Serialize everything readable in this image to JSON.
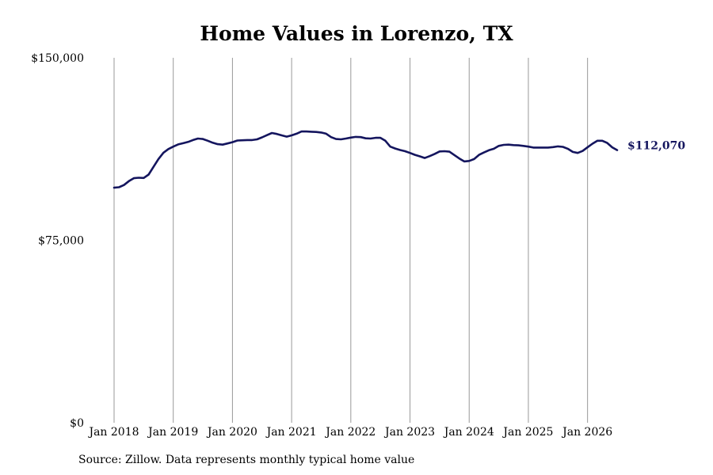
{
  "source_note": "Source: Zillow. Data represents monthly typical home value",
  "chart_data": {
    "type": "line",
    "title": "Home Values in Lorenzo, TX",
    "xlabel": "",
    "ylabel": "",
    "ylim": [
      0,
      150000
    ],
    "y_ticks": [
      {
        "value": 0,
        "label": "$0"
      },
      {
        "value": 75000,
        "label": "$75,000"
      },
      {
        "value": 150000,
        "label": "$150,000"
      }
    ],
    "x_ticks": [
      {
        "value": "2018-01",
        "label": "Jan 2018"
      },
      {
        "value": "2019-01",
        "label": "Jan 2019"
      },
      {
        "value": "2020-01",
        "label": "Jan 2020"
      },
      {
        "value": "2021-01",
        "label": "Jan 2021"
      },
      {
        "value": "2022-01",
        "label": "Jan 2022"
      },
      {
        "value": "2023-01",
        "label": "Jan 2023"
      },
      {
        "value": "2024-01",
        "label": "Jan 2024"
      },
      {
        "value": "2025-01",
        "label": "Jan 2025"
      },
      {
        "value": "2026-01",
        "label": "Jan 2026"
      }
    ],
    "x_range": [
      "2018-01",
      "2026-07"
    ],
    "grid": "vertical at each January",
    "line_color": "#14155e",
    "end_label": "$112,070",
    "series": [
      {
        "x": [
          "2018-01",
          "2018-02",
          "2018-03",
          "2018-04",
          "2018-05",
          "2018-06",
          "2018-07",
          "2018-08",
          "2018-09",
          "2018-10",
          "2018-11",
          "2018-12",
          "2019-01",
          "2019-02",
          "2019-03",
          "2019-04",
          "2019-05",
          "2019-06",
          "2019-07",
          "2019-08",
          "2019-09",
          "2019-10",
          "2019-11",
          "2019-12",
          "2020-01",
          "2020-02",
          "2020-03",
          "2020-04",
          "2020-05",
          "2020-06",
          "2020-07",
          "2020-08",
          "2020-09",
          "2020-10",
          "2020-11",
          "2020-12",
          "2021-01",
          "2021-02",
          "2021-03",
          "2021-04",
          "2021-05",
          "2021-06",
          "2021-07",
          "2021-08",
          "2021-09",
          "2021-10",
          "2021-11",
          "2021-12",
          "2022-01",
          "2022-02",
          "2022-03",
          "2022-04",
          "2022-05",
          "2022-06",
          "2022-07",
          "2022-08",
          "2022-09",
          "2022-10",
          "2022-11",
          "2022-12",
          "2023-01",
          "2023-02",
          "2023-03",
          "2023-04",
          "2023-05",
          "2023-06",
          "2023-07",
          "2023-08",
          "2023-09",
          "2023-10",
          "2023-11",
          "2023-12",
          "2024-01",
          "2024-02",
          "2024-03",
          "2024-04",
          "2024-05",
          "2024-06",
          "2024-07",
          "2024-08",
          "2024-09",
          "2024-10",
          "2024-11",
          "2024-12",
          "2025-01",
          "2025-02",
          "2025-03",
          "2025-04",
          "2025-05",
          "2025-06",
          "2025-07",
          "2025-08",
          "2025-09",
          "2025-10",
          "2025-11",
          "2025-12",
          "2026-01",
          "2026-02",
          "2026-03",
          "2026-04",
          "2026-05",
          "2026-06",
          "2026-07"
        ],
        "values": [
          96600,
          96800,
          97700,
          99300,
          100500,
          100700,
          100600,
          102000,
          105200,
          108400,
          111000,
          112500,
          113500,
          114400,
          114900,
          115400,
          116200,
          116800,
          116600,
          115900,
          115100,
          114500,
          114300,
          114800,
          115300,
          116000,
          116100,
          116200,
          116200,
          116500,
          117300,
          118200,
          119100,
          118700,
          118100,
          117600,
          118100,
          118800,
          119700,
          119700,
          119600,
          119500,
          119300,
          118800,
          117400,
          116600,
          116500,
          116800,
          117200,
          117500,
          117400,
          116900,
          116800,
          117100,
          117100,
          115900,
          113500,
          112700,
          112100,
          111600,
          110900,
          110100,
          109500,
          108800,
          109600,
          110500,
          111500,
          111600,
          111400,
          110000,
          108600,
          107400,
          107600,
          108400,
          110100,
          111100,
          112000,
          112600,
          113800,
          114200,
          114300,
          114100,
          114000,
          113800,
          113500,
          113100,
          113100,
          113100,
          113100,
          113300,
          113600,
          113400,
          112600,
          111300,
          110900,
          111700,
          113200,
          114700,
          115900,
          115900,
          115000,
          113200,
          112070
        ]
      }
    ]
  }
}
